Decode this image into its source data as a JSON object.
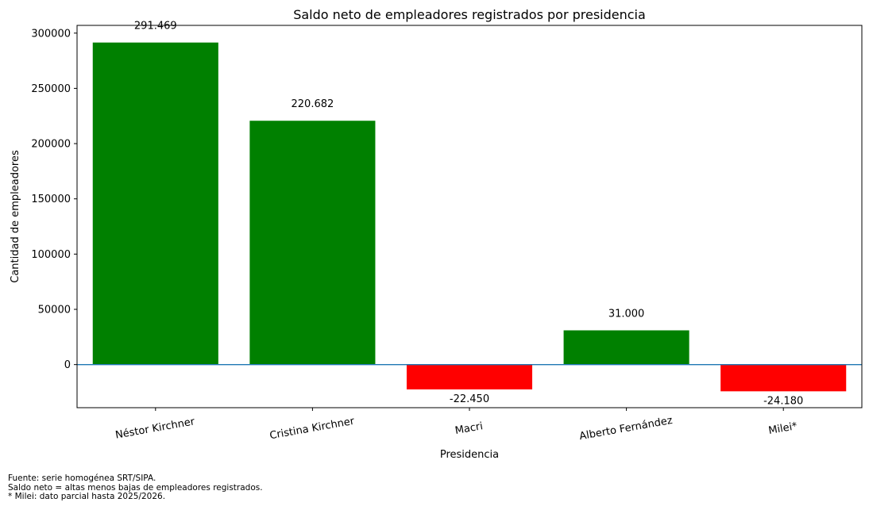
{
  "chart_data": {
    "type": "bar",
    "title": "Saldo neto de empleadores registrados por presidencia",
    "xlabel": "Presidencia",
    "ylabel": "Cantidad de empleadores",
    "categories": [
      "Néstor Kirchner",
      "Cristina Kirchner",
      "Macri",
      "Alberto Fernández",
      "Milei*"
    ],
    "values": [
      291469,
      220682,
      -22450,
      31000,
      -24180
    ],
    "value_labels": [
      "291.469",
      "220.682",
      "-22.450",
      "31.000",
      "-24.180"
    ],
    "ylim": [
      -39000,
      307000
    ],
    "yticks": [
      0,
      50000,
      100000,
      150000,
      200000,
      250000,
      300000
    ],
    "ytick_labels": [
      "0",
      "50000",
      "100000",
      "150000",
      "200000",
      "250000",
      "300000"
    ],
    "colors": {
      "positive": "#008000",
      "negative": "#ff0000",
      "zero_line": "#1f77b4"
    },
    "grid": false,
    "legend": "none",
    "xtick_rotation_deg": -10
  },
  "footnotes": [
    "Fuente: serie homogénea SRT/SIPA.",
    "Saldo neto = altas menos bajas de empleadores registrados.",
    "* Milei: dato parcial hasta 2025/2026."
  ]
}
